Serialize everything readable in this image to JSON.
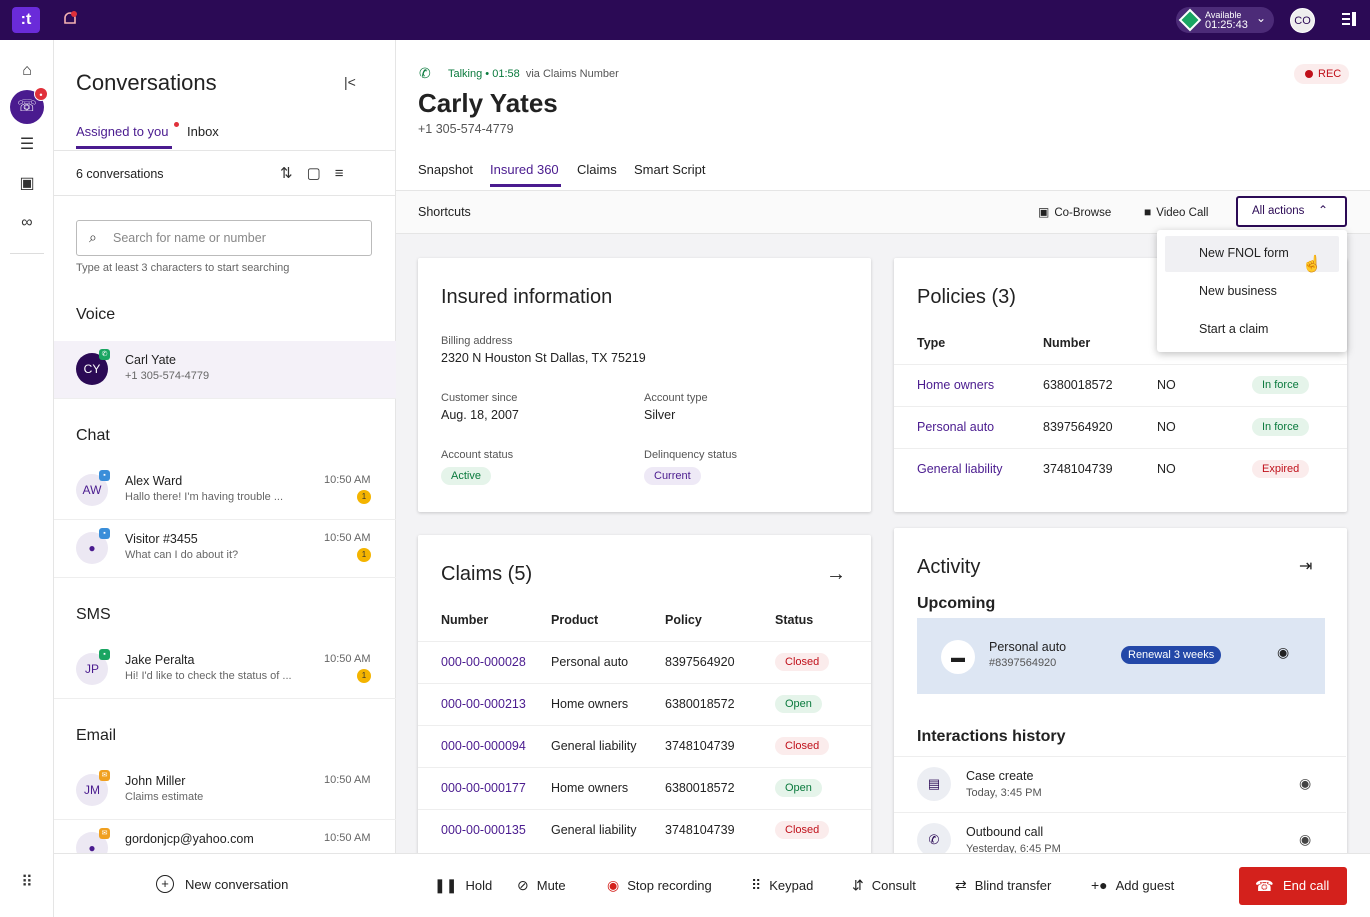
{
  "topbar": {
    "logo": ":t",
    "availability_label": "Available",
    "availability_timer": "01:25:43",
    "user_initials": "CO"
  },
  "rail": {
    "badge": "•"
  },
  "conversations": {
    "title": "Conversations",
    "tabs": [
      "Assigned to you",
      "Inbox"
    ],
    "count": "6 conversations",
    "search_placeholder": "Search for name or number",
    "search_hint": "Type at least 3 characters to start searching",
    "sections": {
      "voice": "Voice",
      "chat": "Chat",
      "sms": "SMS",
      "email": "Email"
    },
    "items": [
      {
        "initials": "CY",
        "name": "Carl Yate",
        "sub": "+1 305-574-4779",
        "time": "",
        "unread": ""
      },
      {
        "initials": "AW",
        "name": "Alex Ward",
        "sub": "Hallo there! I'm having trouble ...",
        "time": "10:50 AM",
        "unread": "1"
      },
      {
        "initials": "",
        "name": "Visitor #3455",
        "sub": "What can I do about it?",
        "time": "10:50 AM",
        "unread": "1"
      },
      {
        "initials": "JP",
        "name": "Jake Peralta",
        "sub": "Hi! I'd like to check the status of ...",
        "time": "10:50 AM",
        "unread": "1"
      },
      {
        "initials": "JM",
        "name": "John Miller",
        "sub": "Claims estimate",
        "time": "10:50 AM",
        "unread": ""
      },
      {
        "initials": "",
        "name": "gordonjcp@yahoo.com",
        "sub": "",
        "time": "10:50 AM",
        "unread": ""
      }
    ],
    "new_conversation": "New conversation"
  },
  "call": {
    "status": "Talking • 01:58",
    "via": "via Claims Number",
    "rec": "REC",
    "customer_name": "Carly Yates",
    "customer_phone": "+1 305-574-4779",
    "tabs": [
      "Snapshot",
      "Insured 360",
      "Claims",
      "Smart Script"
    ],
    "active_tab": "Insured 360"
  },
  "shortcuts": {
    "label": "Shortcuts",
    "cobrowse": "Co-Browse",
    "videocall": "Video Call",
    "all_actions": "All actions",
    "menu": [
      "New FNOL form",
      "New business",
      "Start a claim"
    ]
  },
  "insured": {
    "title": "Insured information",
    "billing_label": "Billing address",
    "billing_value": "2320 N Houston St Dallas, TX 75219",
    "since_label": "Customer since",
    "since_value": "Aug. 18, 2007",
    "type_label": "Account type",
    "type_value": "Silver",
    "status_label": "Account status",
    "status_value": "Active",
    "delinq_label": "Delinquency status",
    "delinq_value": "Current"
  },
  "policies": {
    "title": "Policies (3)",
    "columns": [
      "Type",
      "Number"
    ],
    "rows": [
      {
        "type": "Home owners",
        "number": "6380018572",
        "flag": "NO",
        "status": "In force"
      },
      {
        "type": "Personal auto",
        "number": "8397564920",
        "flag": "NO",
        "status": "In force"
      },
      {
        "type": "General liability",
        "number": "3748104739",
        "flag": "NO",
        "status": "Expired"
      }
    ]
  },
  "claims": {
    "title": "Claims (5)",
    "columns": [
      "Number",
      "Product",
      "Policy",
      "Status"
    ],
    "rows": [
      {
        "number": "000-00-000028",
        "product": "Personal auto",
        "policy": "8397564920",
        "status": "Closed"
      },
      {
        "number": "000-00-000213",
        "product": "Home owners",
        "policy": "6380018572",
        "status": "Open"
      },
      {
        "number": "000-00-000094",
        "product": "General liability",
        "policy": "3748104739",
        "status": "Closed"
      },
      {
        "number": "000-00-000177",
        "product": "Home owners",
        "policy": "6380018572",
        "status": "Open"
      },
      {
        "number": "000-00-000135",
        "product": "General liability",
        "policy": "3748104739",
        "status": "Closed"
      }
    ]
  },
  "activity": {
    "title": "Activity",
    "upcoming_label": "Upcoming",
    "upcoming": {
      "name": "Personal auto",
      "sub": "#8397564920",
      "badge": "Renewal 3 weeks"
    },
    "history_label": "Interactions history",
    "history": [
      {
        "name": "Case create",
        "sub": "Today, 3:45 PM"
      },
      {
        "name": "Outbound call",
        "sub": "Yesterday, 6:45 PM"
      }
    ]
  },
  "callbar": {
    "hold": "Hold",
    "mute": "Mute",
    "stop_recording": "Stop recording",
    "keypad": "Keypad",
    "consult": "Consult",
    "blind_transfer": "Blind transfer",
    "add_guest": "Add guest",
    "end_call": "End call"
  }
}
